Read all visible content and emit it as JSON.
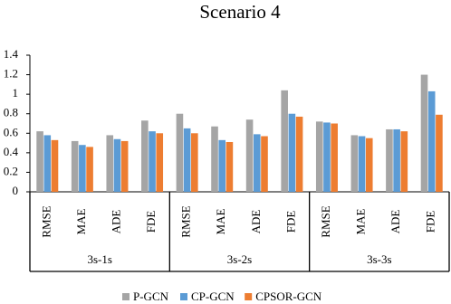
{
  "chart_data": {
    "type": "bar",
    "title": "Scenario 4",
    "categories": [
      "RMSE",
      "MAE",
      "ADE",
      "FDE",
      "RMSE",
      "MAE",
      "ADE",
      "FDE",
      "RMSE",
      "MAE",
      "ADE",
      "FDE"
    ],
    "category_groups": [
      "3s-1s",
      "3s-2s",
      "3s-3s"
    ],
    "series": [
      {
        "name": "P-GCN",
        "color": "#a5a5a5",
        "values": [
          0.62,
          0.52,
          0.58,
          0.73,
          0.8,
          0.67,
          0.74,
          1.04,
          0.72,
          0.58,
          0.64,
          1.2
        ]
      },
      {
        "name": "CP-GCN",
        "color": "#5b9bd5",
        "values": [
          0.58,
          0.48,
          0.54,
          0.62,
          0.65,
          0.53,
          0.59,
          0.8,
          0.71,
          0.57,
          0.64,
          1.03
        ]
      },
      {
        "name": "CPSOR-GCN",
        "color": "#ed7d31",
        "values": [
          0.53,
          0.46,
          0.52,
          0.6,
          0.6,
          0.51,
          0.57,
          0.77,
          0.7,
          0.55,
          0.62,
          0.79
        ]
      }
    ],
    "ylim": [
      0,
      1.4
    ],
    "yticks": [
      0,
      0.2,
      0.4,
      0.6,
      0.8,
      1,
      1.2,
      1.4
    ],
    "legend": "bottom"
  }
}
